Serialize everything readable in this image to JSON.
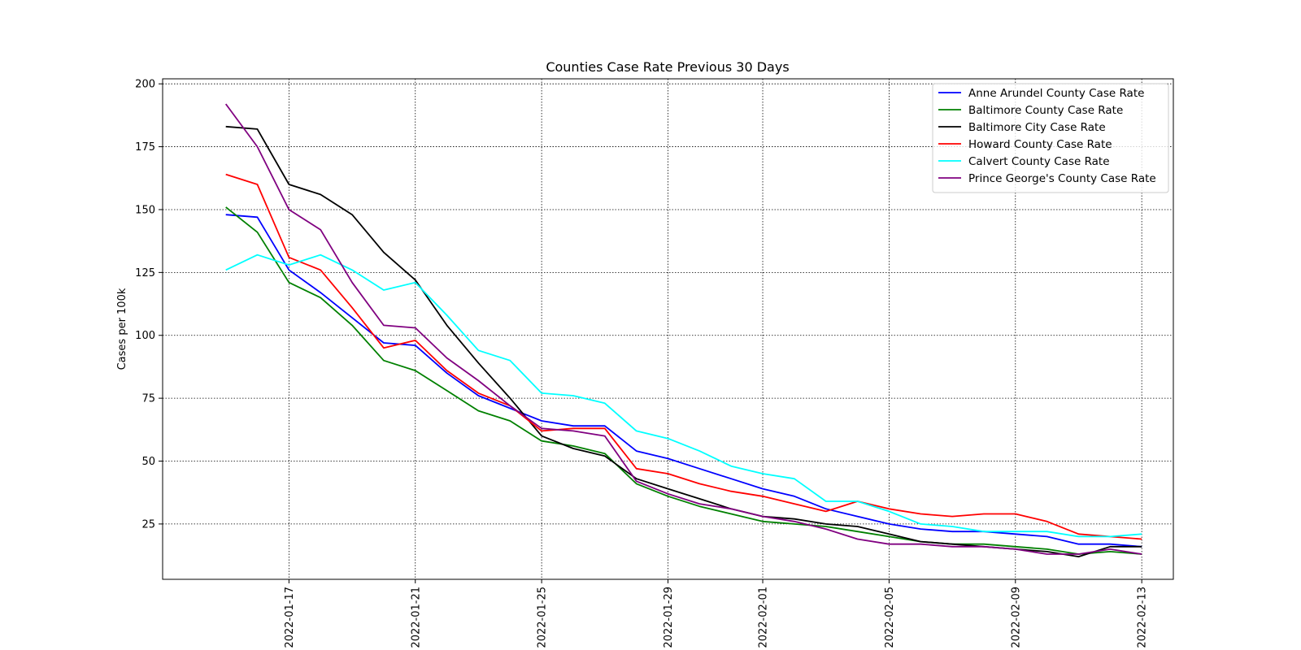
{
  "chart_data": {
    "type": "line",
    "title": "Counties Case Rate Previous 30 Days",
    "xlabel": "",
    "ylabel": "Cases per 100k",
    "ylim": [
      3,
      202
    ],
    "yticks": [
      25,
      50,
      75,
      100,
      125,
      150,
      175,
      200
    ],
    "x_date_range": [
      "2022-01-13",
      "2022-02-14"
    ],
    "xticks": [
      "2022-01-17",
      "2022-01-21",
      "2022-01-25",
      "2022-01-29",
      "2022-02-01",
      "2022-02-05",
      "2022-02-09",
      "2022-02-13"
    ],
    "grid": true,
    "legend_position": "top-right",
    "x": [
      "2022-01-15",
      "2022-01-16",
      "2022-01-17",
      "2022-01-18",
      "2022-01-19",
      "2022-01-20",
      "2022-01-21",
      "2022-01-22",
      "2022-01-23",
      "2022-01-24",
      "2022-01-25",
      "2022-01-26",
      "2022-01-27",
      "2022-01-28",
      "2022-01-29",
      "2022-01-30",
      "2022-01-31",
      "2022-02-01",
      "2022-02-02",
      "2022-02-03",
      "2022-02-04",
      "2022-02-05",
      "2022-02-06",
      "2022-02-07",
      "2022-02-08",
      "2022-02-09",
      "2022-02-10",
      "2022-02-11",
      "2022-02-12",
      "2022-02-13"
    ],
    "series": [
      {
        "name": "Anne Arundel County Case Rate",
        "color": "#0000ff",
        "values": [
          148,
          147,
          126,
          117,
          107,
          97,
          96,
          85,
          76,
          71,
          66,
          64,
          64,
          54,
          51,
          47,
          43,
          39,
          36,
          31,
          28,
          25,
          23,
          22,
          22,
          21,
          20,
          17,
          17,
          16
        ]
      },
      {
        "name": "Baltimore County Case Rate",
        "color": "#008000",
        "values": [
          151,
          141,
          121,
          115,
          104,
          90,
          86,
          78,
          70,
          66,
          58,
          56,
          53,
          41,
          36,
          32,
          29,
          26,
          25,
          24,
          22,
          20,
          18,
          17,
          17,
          16,
          15,
          13,
          14,
          13
        ]
      },
      {
        "name": "Baltimore City Case Rate",
        "color": "#000000",
        "values": [
          183,
          182,
          160,
          156,
          148,
          133,
          122,
          104,
          89,
          75,
          60,
          55,
          52,
          43,
          39,
          35,
          31,
          28,
          27,
          25,
          24,
          21,
          18,
          17,
          16,
          15,
          14,
          12,
          16,
          16
        ]
      },
      {
        "name": "Howard County Case Rate",
        "color": "#ff0000",
        "values": [
          164,
          160,
          131,
          126,
          111,
          95,
          98,
          86,
          77,
          72,
          62,
          63,
          63,
          47,
          45,
          41,
          38,
          36,
          33,
          30,
          34,
          31,
          29,
          28,
          29,
          29,
          26,
          21,
          20,
          19
        ]
      },
      {
        "name": "Calvert County Case Rate",
        "color": "#00ffff",
        "values": [
          126,
          132,
          128,
          132,
          126,
          118,
          121,
          108,
          94,
          90,
          77,
          76,
          73,
          62,
          59,
          54,
          48,
          45,
          43,
          34,
          34,
          30,
          25,
          24,
          22,
          22,
          22,
          20,
          20,
          21
        ]
      },
      {
        "name": "Prince George's County Case Rate",
        "color": "#800080",
        "values": [
          192,
          175,
          150,
          142,
          121,
          104,
          103,
          91,
          82,
          72,
          63,
          62,
          60,
          42,
          37,
          33,
          31,
          28,
          26,
          23,
          19,
          17,
          17,
          16,
          16,
          15,
          13,
          13,
          15,
          13
        ]
      }
    ]
  }
}
